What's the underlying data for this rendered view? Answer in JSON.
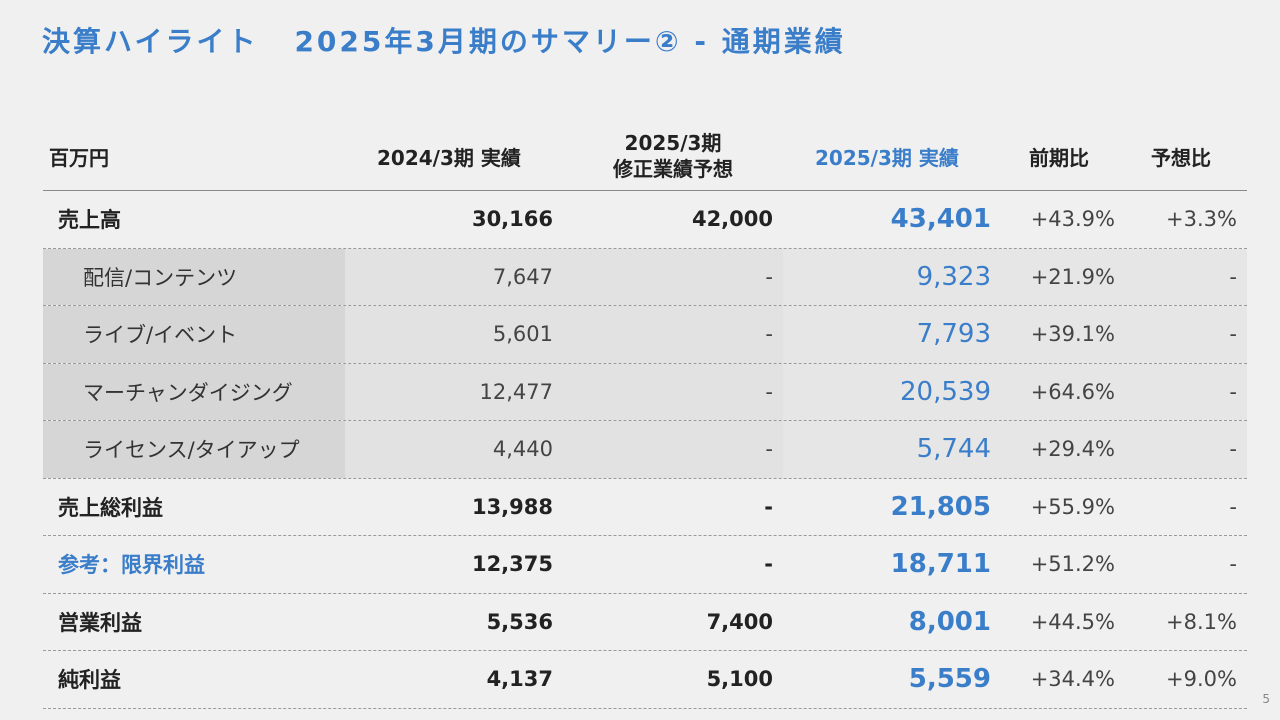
{
  "title": {
    "part1": "決算ハイライト",
    "part2": "2025年3月期のサマリー② - 通期業績"
  },
  "header": {
    "unit": "百万円",
    "col1": "2024/3期 実績",
    "col2_line1": "2025/3期",
    "col2_line2": "修正業績予想",
    "col3": "2025/3期 実績",
    "col4": "前期比",
    "col5": "予想比"
  },
  "rows": [
    {
      "label": "売上高",
      "prev": "30,166",
      "forecast": "42,000",
      "actual": "43,401",
      "yoy": "+43.9%",
      "vs_forecast": "+3.3%"
    },
    {
      "label": "配信/コンテンツ",
      "prev": "7,647",
      "forecast": "-",
      "actual": "9,323",
      "yoy": "+21.9%",
      "vs_forecast": "-"
    },
    {
      "label": "ライブ/イベント",
      "prev": "5,601",
      "forecast": "-",
      "actual": "7,793",
      "yoy": "+39.1%",
      "vs_forecast": "-"
    },
    {
      "label": "マーチャンダイジング",
      "prev": "12,477",
      "forecast": "-",
      "actual": "20,539",
      "yoy": "+64.6%",
      "vs_forecast": "-"
    },
    {
      "label": "ライセンス/タイアップ",
      "prev": "4,440",
      "forecast": "-",
      "actual": "5,744",
      "yoy": "+29.4%",
      "vs_forecast": "-"
    },
    {
      "label": "売上総利益",
      "prev": "13,988",
      "forecast": "-",
      "actual": "21,805",
      "yoy": "+55.9%",
      "vs_forecast": "-"
    },
    {
      "label": "参考：限界利益",
      "prev": "12,375",
      "forecast": "-",
      "actual": "18,711",
      "yoy": "+51.2%",
      "vs_forecast": "-"
    },
    {
      "label": "営業利益",
      "prev": "5,536",
      "forecast": "7,400",
      "actual": "8,001",
      "yoy": "+44.5%",
      "vs_forecast": "+8.1%"
    },
    {
      "label": "純利益",
      "prev": "4,137",
      "forecast": "5,100",
      "actual": "5,559",
      "yoy": "+34.4%",
      "vs_forecast": "+9.0%"
    }
  ],
  "page_number": "5",
  "colors": {
    "accent": "#3a7dc9",
    "background": "#f0f0f0",
    "sub_row_shade": "#d6d6d6"
  }
}
